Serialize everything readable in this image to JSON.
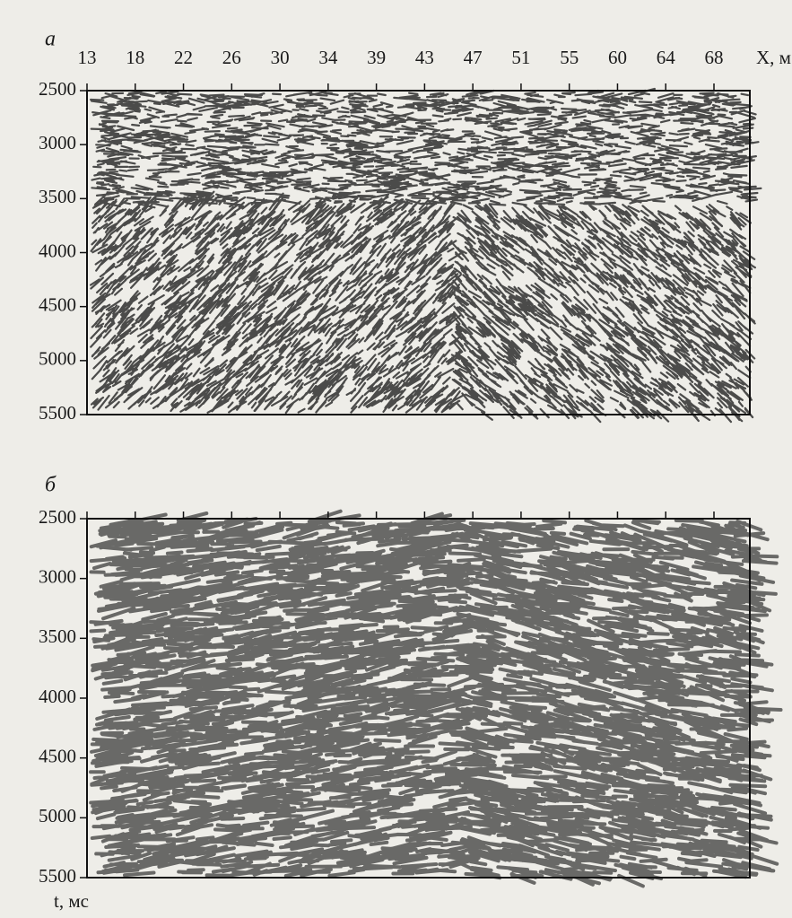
{
  "figure": {
    "x_axis_label": "X, м",
    "y_axis_label": "t, мс",
    "x_ticks": [
      "13",
      "18",
      "22",
      "26",
      "30",
      "34",
      "39",
      "43",
      "47",
      "51",
      "55",
      "60",
      "64",
      "68"
    ],
    "panels": [
      {
        "label": "а",
        "y_ticks": [
          "2500",
          "3000",
          "3500",
          "4000",
          "4500",
          "5000",
          "5500"
        ]
      },
      {
        "label": "б",
        "y_ticks": [
          "2500",
          "3000",
          "3500",
          "4000",
          "4500",
          "5000",
          "5500"
        ]
      }
    ]
  }
}
